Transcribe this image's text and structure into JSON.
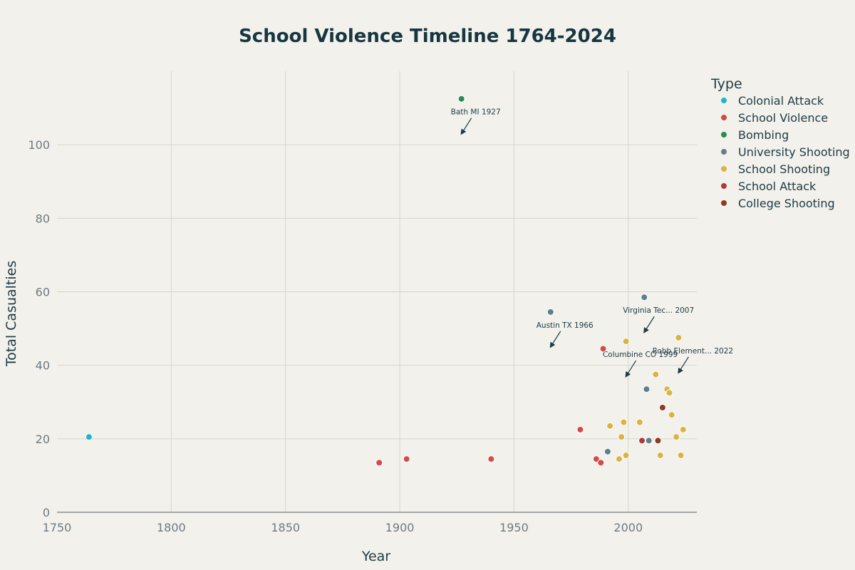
{
  "chart_data": {
    "type": "scatter",
    "title": "School Violence Timeline 1764-2024",
    "xlabel": "Year",
    "ylabel": "Total Casualties",
    "xlim": [
      1750,
      2030
    ],
    "ylim": [
      0,
      120
    ],
    "xticks": [
      1750,
      1800,
      1850,
      1900,
      1950,
      2000
    ],
    "yticks": [
      0,
      20,
      40,
      60,
      80,
      100
    ],
    "grid": true,
    "legend": {
      "title": "Type",
      "position": "right"
    },
    "series": [
      {
        "name": "Colonial Attack",
        "color": "#1fb5c7",
        "points": [
          [
            1764,
            20.5
          ]
        ]
      },
      {
        "name": "School Violence",
        "color": "#d24a4a",
        "points": [
          [
            1891,
            13.5
          ],
          [
            1903,
            14.5
          ],
          [
            1940,
            14.5
          ],
          [
            1979,
            22.5
          ],
          [
            1986,
            14.5
          ],
          [
            1988,
            13.5
          ],
          [
            1989,
            44.5
          ]
        ]
      },
      {
        "name": "Bombing",
        "color": "#2b8a57",
        "points": [
          [
            1927,
            112.5
          ]
        ]
      },
      {
        "name": "University Shooting",
        "color": "#5e7f8c",
        "points": [
          [
            1966,
            54.5
          ],
          [
            1991,
            16.5
          ],
          [
            2007,
            58.5
          ],
          [
            2008,
            33.5
          ],
          [
            2009,
            19.5
          ]
        ]
      },
      {
        "name": "School Shooting",
        "color": "#d9b444",
        "points": [
          [
            1992,
            23.5
          ],
          [
            1996,
            14.5
          ],
          [
            1997,
            20.5
          ],
          [
            1998,
            24.5
          ],
          [
            1999,
            46.5
          ],
          [
            1999,
            15.5
          ],
          [
            2005,
            24.5
          ],
          [
            2012,
            37.5
          ],
          [
            2014,
            15.5
          ],
          [
            2017,
            33.5
          ],
          [
            2018,
            32.5
          ],
          [
            2019,
            26.5
          ],
          [
            2021,
            20.5
          ],
          [
            2022,
            47.5
          ],
          [
            2023,
            15.5
          ],
          [
            2024,
            22.5
          ]
        ]
      },
      {
        "name": "School Attack",
        "color": "#b03a3a",
        "points": [
          [
            2006,
            19.5
          ]
        ]
      },
      {
        "name": "College Shooting",
        "color": "#8e3b22",
        "points": [
          [
            2013,
            19.5
          ],
          [
            2015,
            28.5
          ]
        ]
      }
    ],
    "annotations": [
      {
        "text": "Bath MI 1927",
        "x": 1927,
        "y": 103
      },
      {
        "text": "Austin TX 1966",
        "x": 1966,
        "y": 45
      },
      {
        "text": "Virginia Tec... 2007",
        "x": 2007,
        "y": 49
      },
      {
        "text": "Columbine CO 1999",
        "x": 1999,
        "y": 37
      },
      {
        "text": "Robb Element... 2022",
        "x": 2022,
        "y": 38
      }
    ]
  }
}
